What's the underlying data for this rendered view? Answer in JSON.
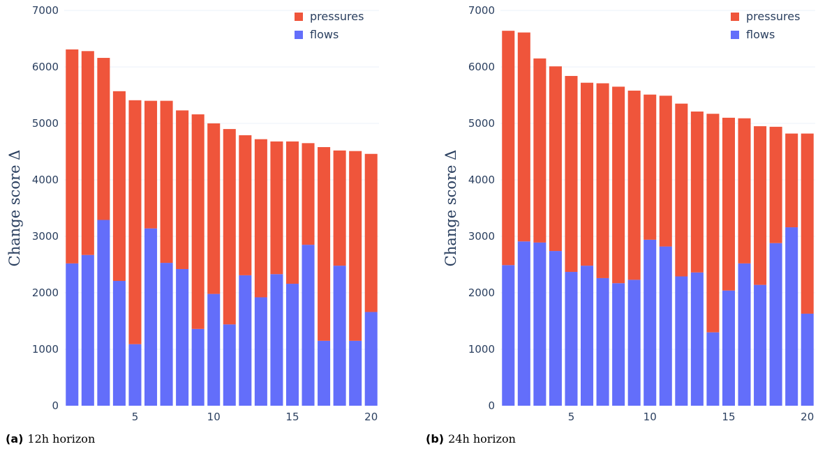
{
  "chart_data": [
    {
      "type": "bar",
      "stacked": true,
      "panel_tag": "(a)",
      "caption": "12h horizon",
      "ylabel": "Change score Δ",
      "xlabel": "",
      "ylim": [
        0,
        7000
      ],
      "yticks": [
        0,
        1000,
        2000,
        3000,
        4000,
        5000,
        6000,
        7000
      ],
      "xticks": [
        5,
        10,
        15,
        20
      ],
      "grid": true,
      "legend_position": "top-right",
      "x": [
        1,
        2,
        3,
        4,
        5,
        6,
        7,
        8,
        9,
        10,
        11,
        12,
        13,
        14,
        15,
        16,
        17,
        18,
        19,
        20
      ],
      "series": [
        {
          "name": "flows",
          "color": "#636efa",
          "values": [
            2520,
            2670,
            3290,
            2210,
            1090,
            3140,
            2530,
            2420,
            1360,
            1980,
            1440,
            2310,
            1920,
            2330,
            2160,
            2850,
            1150,
            2480,
            1150,
            1660
          ]
        },
        {
          "name": "pressures",
          "color": "#ef553b",
          "values": [
            3790,
            3610,
            2870,
            3360,
            4320,
            2260,
            2870,
            2810,
            3800,
            3020,
            3460,
            2480,
            2800,
            2350,
            2520,
            1800,
            3430,
            2040,
            3360,
            2800
          ]
        }
      ]
    },
    {
      "type": "bar",
      "stacked": true,
      "panel_tag": "(b)",
      "caption": "24h horizon",
      "ylabel": "Change score Δ",
      "xlabel": "",
      "ylim": [
        0,
        7000
      ],
      "yticks": [
        0,
        1000,
        2000,
        3000,
        4000,
        5000,
        6000,
        7000
      ],
      "xticks": [
        5,
        10,
        15,
        20
      ],
      "grid": true,
      "legend_position": "top-right",
      "x": [
        1,
        2,
        3,
        4,
        5,
        6,
        7,
        8,
        9,
        10,
        11,
        12,
        13,
        14,
        15,
        16,
        17,
        18,
        19,
        20
      ],
      "series": [
        {
          "name": "flows",
          "color": "#636efa",
          "values": [
            2490,
            2910,
            2890,
            2740,
            2370,
            2480,
            2260,
            2170,
            2230,
            2940,
            2820,
            2290,
            2360,
            1300,
            2040,
            2520,
            2140,
            2880,
            3160,
            1630
          ]
        },
        {
          "name": "pressures",
          "color": "#ef553b",
          "values": [
            4150,
            3700,
            3260,
            3270,
            3470,
            3240,
            3450,
            3480,
            3350,
            2570,
            2670,
            3060,
            2850,
            3870,
            3060,
            2570,
            2810,
            2060,
            1660,
            3190
          ]
        }
      ]
    }
  ]
}
